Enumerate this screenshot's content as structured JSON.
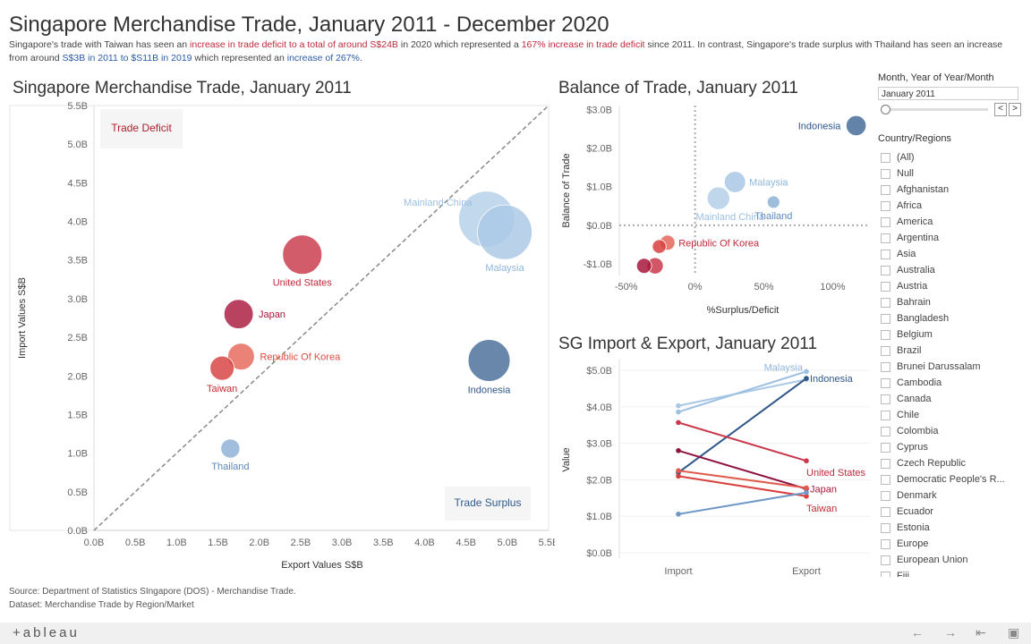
{
  "header": {
    "title": "Singapore Merchandise Trade, January 2011 - December 2020",
    "subtitle_parts": [
      {
        "text": "Singapore's trade with Taiwan has seen an ",
        "style": ""
      },
      {
        "text": "increase in trade deficit to a total of around S$24B",
        "style": "red"
      },
      {
        "text": " in 2020 which represented a ",
        "style": ""
      },
      {
        "text": "167% increase in trade deficit",
        "style": "red"
      },
      {
        "text": " since 2011. In contrast, Singapore's trade surplus with Thailand has seen an increase from around ",
        "style": ""
      },
      {
        "text": "S$3B in 2011 to $S11B in 2019",
        "style": "blue"
      },
      {
        "text": " which represented an ",
        "style": ""
      },
      {
        "text": "increase of 267%",
        "style": "blue"
      },
      {
        "text": ".",
        "style": ""
      }
    ]
  },
  "colors": {
    "deficit_label": "#b01c2e",
    "surplus_label": "#2d5b8e",
    "diagonal": "#888888"
  },
  "chart_data": [
    {
      "type": "scatter",
      "title": "Singapore Merchandise Trade, January 2011",
      "xlabel": "Export Values S$B",
      "ylabel": "Import Values S$B",
      "xlim": [
        0,
        5.5
      ],
      "ylim": [
        0,
        5.5
      ],
      "xticks": [
        "0.0B",
        "0.5B",
        "1.0B",
        "1.5B",
        "2.0B",
        "2.5B",
        "3.0B",
        "3.5B",
        "4.0B",
        "4.5B",
        "5.0B",
        "5.5B"
      ],
      "yticks": [
        "0.0B",
        "0.5B",
        "1.0B",
        "1.5B",
        "2.0B",
        "2.5B",
        "3.0B",
        "3.5B",
        "4.0B",
        "4.5B",
        "5.0B",
        "5.5B"
      ],
      "region_labels": {
        "deficit": "Trade Deficit",
        "surplus": "Trade Surplus"
      },
      "points": [
        {
          "name": "Mainland China",
          "label": "Mainland China",
          "x": 4.75,
          "y": 4.03,
          "size": 4.4,
          "color": "#b4cfe8",
          "labelColor": "#9dbfdf",
          "labelPos": "left"
        },
        {
          "name": "Malaysia",
          "label": "Malaysia",
          "x": 4.97,
          "y": 3.86,
          "size": 4.3,
          "color": "#a9c8e5",
          "labelColor": "#8fb7de",
          "labelPos": "below"
        },
        {
          "name": "United States",
          "label": "United States",
          "x": 2.52,
          "y": 3.57,
          "size": 3.1,
          "color": "#c9384b",
          "labelColor": "#c2293b",
          "labelPos": "below"
        },
        {
          "name": "Japan",
          "label": "Japan",
          "x": 1.75,
          "y": 2.8,
          "size": 2.3,
          "color": "#a8183c",
          "labelColor": "#a8183c",
          "labelPos": "right"
        },
        {
          "name": "Republic Of Korea",
          "label": "Republic Of Korea",
          "x": 1.78,
          "y": 2.25,
          "size": 2.1,
          "color": "#e5665a",
          "labelColor": "#de4b3f",
          "labelPos": "right"
        },
        {
          "name": "Taiwan",
          "label": "Taiwan",
          "x": 1.55,
          "y": 2.1,
          "size": 1.9,
          "color": "#d7403e",
          "labelColor": "#c52b31",
          "labelPos": "below"
        },
        {
          "name": "Indonesia",
          "label": "Indonesia",
          "x": 4.78,
          "y": 2.2,
          "size": 3.3,
          "color": "#486d99",
          "labelColor": "#2e578b",
          "labelPos": "below"
        },
        {
          "name": "Thailand",
          "label": "Thailand",
          "x": 1.65,
          "y": 1.06,
          "size": 1.5,
          "color": "#8db0d5",
          "labelColor": "#5c88bd",
          "labelPos": "below"
        }
      ]
    },
    {
      "type": "scatter",
      "title": "Balance of Trade, January 2011",
      "xlabel": "%Surplus/Deficit",
      "ylabel": "Balance of Trade",
      "xlim": [
        -0.55,
        1.27
      ],
      "ylim": [
        -1.3,
        3.1
      ],
      "xticks": [
        {
          "v": -0.5,
          "t": "-50%"
        },
        {
          "v": 0,
          "t": "0%"
        },
        {
          "v": 0.5,
          "t": "50%"
        },
        {
          "v": 1.0,
          "t": "100%"
        }
      ],
      "yticks": [
        {
          "v": 3,
          "t": "$3.0B"
        },
        {
          "v": 2,
          "t": "$2.0B"
        },
        {
          "v": 1,
          "t": "$1.0B"
        },
        {
          "v": 0,
          "t": "$0.0B"
        },
        {
          "v": -1,
          "t": "-$1.0B"
        }
      ],
      "points": [
        {
          "name": "Indonesia",
          "label": "Indonesia",
          "x": 1.17,
          "y": 2.58,
          "size": 1.6,
          "color": "#486d99",
          "labelColor": "#2e578b",
          "labelPos": "left"
        },
        {
          "name": "Malaysia",
          "label": "Malaysia",
          "x": 0.29,
          "y": 1.12,
          "size": 1.7,
          "color": "#a9c8e5",
          "labelColor": "#8fb7de",
          "labelPos": "right"
        },
        {
          "name": "Mainland China",
          "label": "Mainland China",
          "x": 0.17,
          "y": 0.7,
          "size": 1.8,
          "color": "#b4cfe8",
          "labelColor": "#9dbfdf",
          "labelPos": "belowright"
        },
        {
          "name": "Thailand",
          "label": "Thailand",
          "x": 0.57,
          "y": 0.6,
          "size": 1.0,
          "color": "#8db0d5",
          "labelColor": "#5c88bd",
          "labelPos": "below"
        },
        {
          "name": "Republic Of Korea",
          "label": "Republic Of Korea",
          "x": -0.2,
          "y": -0.45,
          "size": 1.2,
          "color": "#e5665a",
          "labelColor": "#c2293b",
          "labelPos": "right"
        },
        {
          "name": "Taiwan",
          "label": "",
          "x": -0.26,
          "y": -0.55,
          "size": 1.1,
          "color": "#d7403e",
          "labelColor": "#c52b31",
          "labelPos": "none"
        },
        {
          "name": "United States",
          "label": "",
          "x": -0.29,
          "y": -1.05,
          "size": 1.3,
          "color": "#c9384b",
          "labelColor": "#c2293b",
          "labelPos": "none"
        },
        {
          "name": "Japan",
          "label": "",
          "x": -0.37,
          "y": -1.05,
          "size": 1.2,
          "color": "#a8183c",
          "labelColor": "#a8183c",
          "labelPos": "none"
        }
      ]
    },
    {
      "type": "line",
      "title": "SG Import & Export, January 2011",
      "ylabel": "Value",
      "categories": [
        "Import",
        "Export"
      ],
      "ylim": [
        0,
        5.1
      ],
      "yticks": [
        {
          "v": 0,
          "t": "$0.0B"
        },
        {
          "v": 1,
          "t": "$1.0B"
        },
        {
          "v": 2,
          "t": "$2.0B"
        },
        {
          "v": 3,
          "t": "$3.0B"
        },
        {
          "v": 4,
          "t": "$4.0B"
        },
        {
          "v": 5,
          "t": "$5.0B"
        }
      ],
      "series": [
        {
          "name": "Mainland China",
          "label": "",
          "values": [
            4.03,
            4.75
          ],
          "color": "#a9c8e5"
        },
        {
          "name": "Malaysia",
          "label": "Malaysia",
          "values": [
            3.86,
            4.97
          ],
          "color": "#9dc0e2",
          "labelColor": "#8fb7de",
          "labelPos": "above-left"
        },
        {
          "name": "Indonesia",
          "label": "Indonesia",
          "values": [
            2.2,
            4.78
          ],
          "color": "#2f5686",
          "labelColor": "#2e578b",
          "labelPos": "right"
        },
        {
          "name": "United States",
          "label": "United States",
          "values": [
            3.57,
            2.52
          ],
          "color": "#c9384b",
          "labelColor": "#c2293b",
          "labelPos": "below-right"
        },
        {
          "name": "Japan",
          "label": "Japan",
          "values": [
            2.8,
            1.75
          ],
          "color": "#8f1340",
          "labelColor": "#a8183c",
          "labelPos": "right"
        },
        {
          "name": "Republic Of Korea",
          "label": "",
          "values": [
            2.25,
            1.78
          ],
          "color": "#e05a4d"
        },
        {
          "name": "Taiwan",
          "label": "Taiwan",
          "values": [
            2.1,
            1.55
          ],
          "color": "#d7403e",
          "labelColor": "#c52b31",
          "labelPos": "below-right"
        },
        {
          "name": "Thailand",
          "label": "",
          "values": [
            1.06,
            1.65
          ],
          "color": "#6f98c6"
        }
      ]
    }
  ],
  "filters": {
    "month_label": "Month, Year of Year/Month",
    "month_value": "January 2011",
    "prev_symbol": "<",
    "next_symbol": ">",
    "region_label": "Country/Regions",
    "regions": [
      "(All)",
      "Null",
      "Afghanistan",
      "Africa",
      "America",
      "Argentina",
      "Asia",
      "Australia",
      "Austria",
      "Bahrain",
      "Bangladesh",
      "Belgium",
      "Brazil",
      "Brunei Darussalam",
      "Cambodia",
      "Canada",
      "Chile",
      "Colombia",
      "Cyprus",
      "Czech Republic",
      "Democratic People's R...",
      "Denmark",
      "Ecuador",
      "Estonia",
      "Europe",
      "European Union",
      "Fiji"
    ]
  },
  "source": {
    "line1": "Source: Department of Statistics SIngapore (DOS) - Merchandise Trade.",
    "line2": "Dataset: Merchandise Trade by Region/Market"
  },
  "footer": {
    "logo": "+ableau",
    "icons": [
      "undo-icon",
      "redo-icon",
      "revert-icon",
      "fullscreen-icon"
    ]
  }
}
